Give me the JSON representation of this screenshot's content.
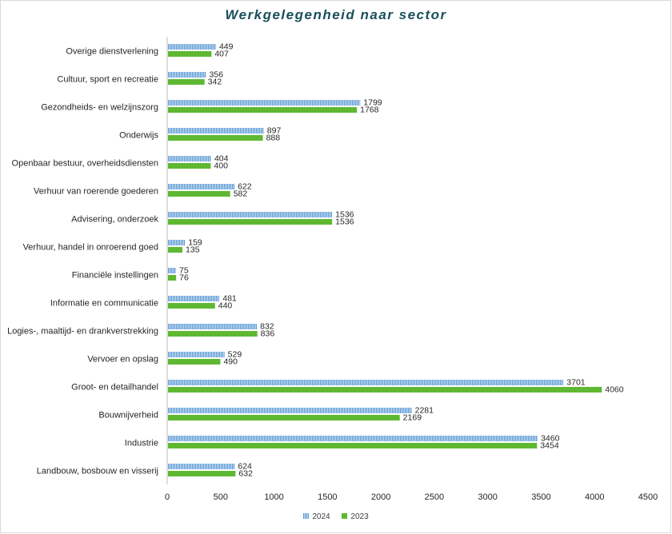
{
  "chart_data": {
    "type": "bar",
    "orientation": "horizontal",
    "title": "Werkgelegenheid naar sector",
    "categories": [
      "Overige dienstverlening",
      "Cultuur, sport en recreatie",
      "Gezondheids- en welzijnszorg",
      "Onderwijs",
      "Openbaar bestuur, overheidsdiensten",
      "Verhuur van roerende goederen",
      "Advisering, onderzoek",
      "Verhuur, handel in onroerend goed",
      "Financiële instellingen",
      "Informatie en communicatie",
      "Logies-, maaltijd- en drankverstrekking",
      "Vervoer en opslag",
      "Groot- en detailhandel",
      "Bouwnijverheid",
      "Industrie",
      "Landbouw, bosbouw en visserij"
    ],
    "series": [
      {
        "name": "2024",
        "color": "#5b9bd5",
        "pattern": "vertical-stripes",
        "values": [
          449,
          356,
          1799,
          897,
          404,
          622,
          1536,
          159,
          75,
          481,
          832,
          529,
          3701,
          2281,
          3460,
          624
        ]
      },
      {
        "name": "2023",
        "color": "#5fb832",
        "pattern": "solid",
        "values": [
          407,
          342,
          1768,
          888,
          400,
          582,
          1536,
          135,
          76,
          440,
          836,
          490,
          4060,
          2169,
          3454,
          632
        ]
      }
    ],
    "xlim": [
      0,
      4500
    ],
    "xticks": [
      0,
      500,
      1000,
      1500,
      2000,
      2500,
      3000,
      3500,
      4000,
      4500
    ],
    "grid": false,
    "data_labels": true,
    "legend_position": "bottom"
  }
}
